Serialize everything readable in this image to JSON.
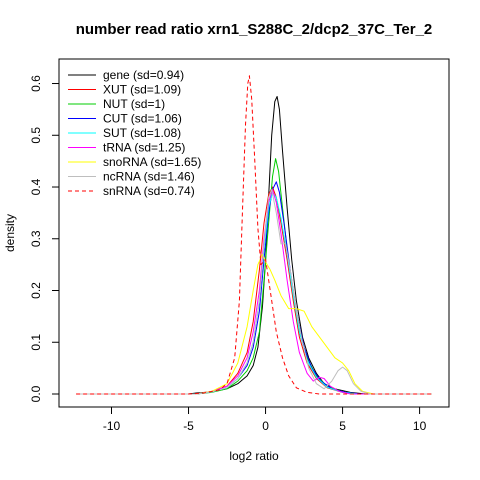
{
  "chart_data": {
    "type": "line",
    "title": "number read ratio xrn1_S288C_2/dcp2_37C_Ter_2",
    "xlabel": "log2 ratio",
    "ylabel": "density",
    "xlim": [
      -12.5,
      11
    ],
    "ylim": [
      0,
      0.63
    ],
    "x_ticks": [
      -10,
      -5,
      0,
      5,
      10
    ],
    "y_ticks": [
      0.0,
      0.1,
      0.2,
      0.3,
      0.4,
      0.5,
      0.6
    ],
    "x_tick_labels": [
      "-10",
      "-5",
      "0",
      "5",
      "10"
    ],
    "y_tick_labels": [
      "0.0",
      "0.1",
      "0.2",
      "0.3",
      "0.4",
      "0.5",
      "0.6"
    ],
    "legend_position": "top-left",
    "grid": false,
    "series": [
      {
        "name": "gene (sd=0.94)",
        "color": "#000000",
        "dash": false,
        "points": [
          [
            -12.3,
            0
          ],
          [
            -5,
            0
          ],
          [
            -4.5,
            0.002
          ],
          [
            -3.5,
            0.004
          ],
          [
            -2.5,
            0.01
          ],
          [
            -1.8,
            0.02
          ],
          [
            -1.2,
            0.035
          ],
          [
            -0.8,
            0.055
          ],
          [
            -0.5,
            0.09
          ],
          [
            -0.2,
            0.17
          ],
          [
            0.0,
            0.26
          ],
          [
            0.2,
            0.38
          ],
          [
            0.4,
            0.5
          ],
          [
            0.6,
            0.565
          ],
          [
            0.75,
            0.575
          ],
          [
            0.9,
            0.55
          ],
          [
            1.1,
            0.47
          ],
          [
            1.4,
            0.36
          ],
          [
            1.7,
            0.26
          ],
          [
            2.0,
            0.18
          ],
          [
            2.4,
            0.11
          ],
          [
            2.8,
            0.07
          ],
          [
            3.3,
            0.04
          ],
          [
            3.8,
            0.02
          ],
          [
            4.5,
            0.01
          ],
          [
            5.5,
            0.003
          ],
          [
            6.5,
            0
          ],
          [
            10.8,
            0
          ]
        ]
      },
      {
        "name": "XUT (sd=1.09)",
        "color": "#ff0000",
        "dash": false,
        "points": [
          [
            -12.3,
            0
          ],
          [
            -4.5,
            0
          ],
          [
            -3.5,
            0.005
          ],
          [
            -2.5,
            0.015
          ],
          [
            -1.8,
            0.04
          ],
          [
            -1.2,
            0.08
          ],
          [
            -0.8,
            0.14
          ],
          [
            -0.4,
            0.24
          ],
          [
            -0.1,
            0.33
          ],
          [
            0.2,
            0.385
          ],
          [
            0.45,
            0.4
          ],
          [
            0.7,
            0.38
          ],
          [
            1.0,
            0.33
          ],
          [
            1.4,
            0.26
          ],
          [
            1.8,
            0.18
          ],
          [
            2.2,
            0.11
          ],
          [
            2.7,
            0.06
          ],
          [
            3.3,
            0.03
          ],
          [
            4.0,
            0.012
          ],
          [
            5.0,
            0.003
          ],
          [
            6.0,
            0
          ],
          [
            10.8,
            0
          ]
        ]
      },
      {
        "name": "NUT (sd=1)",
        "color": "#00cc00",
        "dash": false,
        "points": [
          [
            -12.3,
            0
          ],
          [
            -4.5,
            0
          ],
          [
            -3.5,
            0.003
          ],
          [
            -2.5,
            0.01
          ],
          [
            -1.8,
            0.025
          ],
          [
            -1.2,
            0.045
          ],
          [
            -0.8,
            0.07
          ],
          [
            -0.4,
            0.12
          ],
          [
            -0.1,
            0.22
          ],
          [
            0.2,
            0.33
          ],
          [
            0.45,
            0.42
          ],
          [
            0.65,
            0.455
          ],
          [
            0.85,
            0.43
          ],
          [
            1.1,
            0.36
          ],
          [
            1.4,
            0.28
          ],
          [
            1.8,
            0.19
          ],
          [
            2.2,
            0.12
          ],
          [
            2.7,
            0.07
          ],
          [
            3.3,
            0.035
          ],
          [
            4.0,
            0.015
          ],
          [
            5.0,
            0.004
          ],
          [
            6.0,
            0
          ],
          [
            10.8,
            0
          ]
        ]
      },
      {
        "name": "CUT (sd=1.06)",
        "color": "#0000ff",
        "dash": false,
        "points": [
          [
            -12.3,
            0
          ],
          [
            -4.5,
            0
          ],
          [
            -3.5,
            0.004
          ],
          [
            -2.5,
            0.012
          ],
          [
            -1.8,
            0.03
          ],
          [
            -1.2,
            0.055
          ],
          [
            -0.8,
            0.09
          ],
          [
            -0.4,
            0.16
          ],
          [
            -0.1,
            0.26
          ],
          [
            0.2,
            0.35
          ],
          [
            0.45,
            0.395
          ],
          [
            0.7,
            0.41
          ],
          [
            0.9,
            0.39
          ],
          [
            1.2,
            0.33
          ],
          [
            1.6,
            0.24
          ],
          [
            2.0,
            0.16
          ],
          [
            2.5,
            0.09
          ],
          [
            3.0,
            0.05
          ],
          [
            3.6,
            0.025
          ],
          [
            4.3,
            0.01
          ],
          [
            5.2,
            0.003
          ],
          [
            6.2,
            0
          ],
          [
            10.8,
            0
          ]
        ]
      },
      {
        "name": "SUT (sd=1.08)",
        "color": "#00ffff",
        "dash": false,
        "points": [
          [
            -12.3,
            0
          ],
          [
            -4.5,
            0
          ],
          [
            -3.5,
            0.004
          ],
          [
            -2.5,
            0.012
          ],
          [
            -1.8,
            0.03
          ],
          [
            -1.2,
            0.06
          ],
          [
            -0.8,
            0.1
          ],
          [
            -0.4,
            0.18
          ],
          [
            -0.1,
            0.28
          ],
          [
            0.2,
            0.36
          ],
          [
            0.45,
            0.39
          ],
          [
            0.7,
            0.38
          ],
          [
            1.0,
            0.34
          ],
          [
            1.4,
            0.27
          ],
          [
            1.8,
            0.19
          ],
          [
            2.2,
            0.12
          ],
          [
            2.7,
            0.065
          ],
          [
            3.3,
            0.032
          ],
          [
            4.0,
            0.013
          ],
          [
            5.0,
            0.003
          ],
          [
            6.0,
            0
          ],
          [
            10.8,
            0
          ]
        ]
      },
      {
        "name": "tRNA (sd=1.25)",
        "color": "#ff00ff",
        "dash": false,
        "points": [
          [
            -12.3,
            0
          ],
          [
            -4.5,
            0
          ],
          [
            -3.5,
            0.005
          ],
          [
            -2.5,
            0.015
          ],
          [
            -1.8,
            0.035
          ],
          [
            -1.2,
            0.07
          ],
          [
            -0.8,
            0.12
          ],
          [
            -0.4,
            0.2
          ],
          [
            -0.1,
            0.3
          ],
          [
            0.2,
            0.37
          ],
          [
            0.45,
            0.395
          ],
          [
            0.7,
            0.37
          ],
          [
            1.0,
            0.31
          ],
          [
            1.4,
            0.22
          ],
          [
            1.8,
            0.14
          ],
          [
            2.2,
            0.08
          ],
          [
            2.7,
            0.04
          ],
          [
            3.1,
            0.025
          ],
          [
            3.5,
            0.032
          ],
          [
            3.8,
            0.03
          ],
          [
            4.2,
            0.015
          ],
          [
            4.8,
            0.005
          ],
          [
            5.5,
            0
          ],
          [
            10.8,
            0
          ]
        ]
      },
      {
        "name": "snoRNA (sd=1.65)",
        "color": "#ffff00",
        "dash": false,
        "points": [
          [
            -12.3,
            0
          ],
          [
            -4.5,
            0
          ],
          [
            -3.5,
            0.005
          ],
          [
            -2.5,
            0.02
          ],
          [
            -1.8,
            0.06
          ],
          [
            -1.2,
            0.13
          ],
          [
            -0.8,
            0.2
          ],
          [
            -0.5,
            0.25
          ],
          [
            -0.2,
            0.27
          ],
          [
            0.0,
            0.255
          ],
          [
            0.3,
            0.24
          ],
          [
            0.6,
            0.22
          ],
          [
            1.0,
            0.19
          ],
          [
            1.5,
            0.165
          ],
          [
            2.0,
            0.165
          ],
          [
            2.5,
            0.16
          ],
          [
            3.0,
            0.13
          ],
          [
            3.5,
            0.11
          ],
          [
            4.0,
            0.09
          ],
          [
            4.5,
            0.07
          ],
          [
            5.0,
            0.06
          ],
          [
            5.4,
            0.045
          ],
          [
            5.8,
            0.02
          ],
          [
            6.3,
            0.005
          ],
          [
            7.0,
            0
          ],
          [
            10.8,
            0
          ]
        ]
      },
      {
        "name": "ncRNA (sd=1.46)",
        "color": "#bebebe",
        "dash": false,
        "points": [
          [
            -12.3,
            0
          ],
          [
            -4.5,
            0
          ],
          [
            -3.5,
            0.004
          ],
          [
            -2.5,
            0.012
          ],
          [
            -1.8,
            0.03
          ],
          [
            -1.2,
            0.06
          ],
          [
            -0.8,
            0.1
          ],
          [
            -0.4,
            0.18
          ],
          [
            -0.1,
            0.29
          ],
          [
            0.2,
            0.38
          ],
          [
            0.4,
            0.395
          ],
          [
            0.7,
            0.35
          ],
          [
            1.0,
            0.29
          ],
          [
            1.3,
            0.29
          ],
          [
            1.6,
            0.24
          ],
          [
            2.0,
            0.16
          ],
          [
            2.4,
            0.1
          ],
          [
            2.8,
            0.05
          ],
          [
            3.3,
            0.02
          ],
          [
            3.8,
            0.01
          ],
          [
            4.3,
            0.025
          ],
          [
            4.7,
            0.045
          ],
          [
            5.0,
            0.052
          ],
          [
            5.3,
            0.045
          ],
          [
            5.7,
            0.02
          ],
          [
            6.2,
            0.005
          ],
          [
            6.8,
            0
          ],
          [
            10.8,
            0
          ]
        ]
      },
      {
        "name": "snRNA (sd=0.74)",
        "color": "#ff0000",
        "dash": true,
        "points": [
          [
            -12.3,
            0
          ],
          [
            -5,
            0
          ],
          [
            -4,
            0.002
          ],
          [
            -3,
            0.008
          ],
          [
            -2.5,
            0.02
          ],
          [
            -2.0,
            0.07
          ],
          [
            -1.7,
            0.18
          ],
          [
            -1.5,
            0.35
          ],
          [
            -1.3,
            0.52
          ],
          [
            -1.15,
            0.6
          ],
          [
            -1.05,
            0.615
          ],
          [
            -0.9,
            0.57
          ],
          [
            -0.7,
            0.45
          ],
          [
            -0.5,
            0.32
          ],
          [
            -0.3,
            0.25
          ],
          [
            0.0,
            0.26
          ],
          [
            0.3,
            0.2
          ],
          [
            0.7,
            0.12
          ],
          [
            1.1,
            0.07
          ],
          [
            1.5,
            0.035
          ],
          [
            2.0,
            0.012
          ],
          [
            2.7,
            0.003
          ],
          [
            3.5,
            0
          ],
          [
            10.8,
            0
          ]
        ]
      }
    ]
  }
}
